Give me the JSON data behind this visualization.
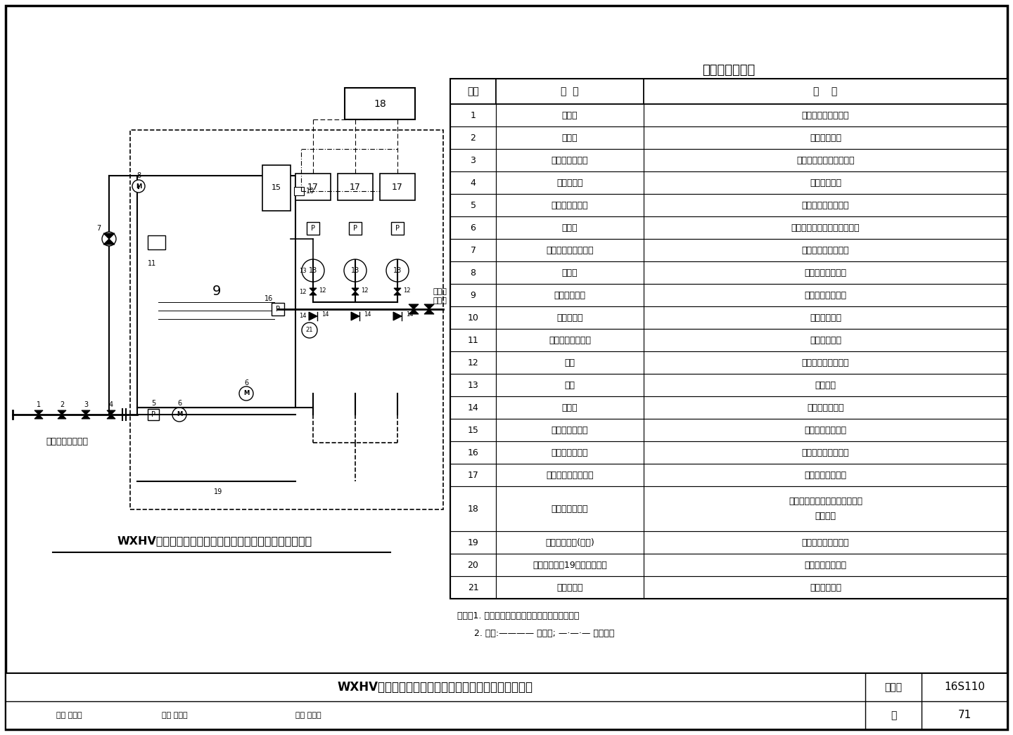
{
  "bg_color": "#ffffff",
  "table_title": "设备主要部件表",
  "table_headers": [
    "序号",
    "名  称",
    "用    途"
  ],
  "table_rows": [
    [
      "1",
      "控制阀",
      "进水总管检修时关闭"
    ],
    [
      "2",
      "过滤器",
      "过滤管网进水"
    ],
    [
      "3",
      "可曲挠橡胶接头",
      "隔振、便于管路拆卸检修"
    ],
    [
      "4",
      "倒流防止器",
      "防止回流污染"
    ],
    [
      "5",
      "进水压力传感器",
      "检测设备进水管压力"
    ],
    [
      "6",
      "电动阀",
      "叠压进水与水箱吸水自动切换"
    ],
    [
      "7",
      "遥控液压水位控制阀",
      "水箱进水时自动开启"
    ],
    [
      "8",
      "电磁阀",
      "遥控水箱自动补水"
    ],
    [
      "9",
      "不锈钢储水箱",
      "储存高峰时段用水"
    ],
    [
      "10",
      "液位传感器",
      "检测水箱液位"
    ],
    [
      "11",
      "水箱自动清洗装置",
      "定期清洁水箱"
    ],
    [
      "12",
      "阀门",
      "水泵进、出水控制阀"
    ],
    [
      "13",
      "水泵",
      "增压供水"
    ],
    [
      "14",
      "止回阀",
      "防止压力水回流"
    ],
    [
      "15",
      "胶囊式气压水罐",
      "保持系统压力稳定"
    ],
    [
      "16",
      "出水压力传感器",
      "检测设备出水管压力"
    ],
    [
      "17",
      "数字集成变频控制器",
      "控制水泵变频运行"
    ],
    [
      "18",
      "配电柜、显示屏",
      "供配电、设定、调整及显示设备\n运行参数"
    ],
    [
      "19",
      "紫外线消毒器(选配)",
      "对水质在线消毒灭菌"
    ],
    [
      "20",
      "消毒器接口（19未配置时用）",
      "供连接消毒装置用"
    ],
    [
      "21",
      "吸水稳流罐",
      "稳定水泵吸水"
    ]
  ],
  "notes_line1": "说明：1. 图中虚线框内为厂家成套设备供货范围。",
  "notes_line2": "      2. 图例:———— 控制线; —·—·— 信号线。",
  "footer_title": "WXHV系列全变频箱式叠压供水设备基本组成及控制原理",
  "footer_label1": "图集号",
  "footer_value1": "16S110",
  "footer_label2": "页",
  "footer_value2": "71",
  "footer_staff": "审核 罗定元    校对 尹忠珍    设计 陈加兵",
  "diagram_title": "WXHV系列全变频箱式叠压供水设备基本组成及控制原理图",
  "label_left": "接市政自来水管网",
  "label_right1": "接至用",
  "label_right2": "户管网"
}
